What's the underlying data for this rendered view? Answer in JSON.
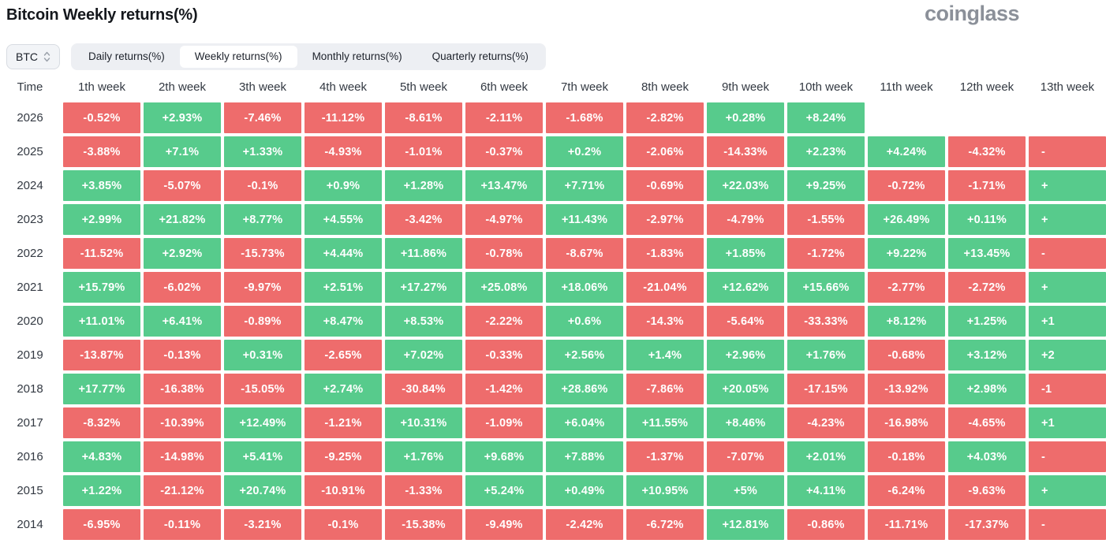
{
  "page": {
    "title": "Bitcoin Weekly returns(%)",
    "brand": "coinglass"
  },
  "controls": {
    "coin_select": {
      "label": "BTC",
      "icon": "sort-updown-icon"
    },
    "tabs": [
      {
        "label": "Daily returns(%)",
        "active": false
      },
      {
        "label": "Weekly returns(%)",
        "active": true
      },
      {
        "label": "Monthly returns(%)",
        "active": false
      },
      {
        "label": "Quarterly returns(%)",
        "active": false
      }
    ]
  },
  "chart_data": {
    "type": "heatmap",
    "title": "Bitcoin Weekly returns(%)",
    "legend_position": "none",
    "grid": false,
    "colors": {
      "positive": "#57cb8c",
      "negative": "#ee6c6c",
      "text": "#ffffff"
    },
    "columns": [
      "Time",
      "1th week",
      "2th week",
      "3th week",
      "4th week",
      "5th week",
      "6th week",
      "7th week",
      "8th week",
      "9th week",
      "10th week",
      "11th week",
      "12th week",
      "13th week"
    ],
    "clipped_columns": [
      "13th week"
    ],
    "rows": [
      {
        "year": "2026",
        "values": [
          "-0.52%",
          "+2.93%",
          "-7.46%",
          "-11.12%",
          "-8.61%",
          "-2.11%",
          "-1.68%",
          "-2.82%",
          "+0.28%",
          "+8.24%",
          "",
          "",
          ""
        ]
      },
      {
        "year": "2025",
        "values": [
          "-3.88%",
          "+7.1%",
          "+1.33%",
          "-4.93%",
          "-1.01%",
          "-0.37%",
          "+0.2%",
          "-2.06%",
          "-14.33%",
          "+2.23%",
          "+4.24%",
          "-4.32%",
          "-"
        ]
      },
      {
        "year": "2024",
        "values": [
          "+3.85%",
          "-5.07%",
          "-0.1%",
          "+0.9%",
          "+1.28%",
          "+13.47%",
          "+7.71%",
          "-0.69%",
          "+22.03%",
          "+9.25%",
          "-0.72%",
          "-1.71%",
          "+"
        ]
      },
      {
        "year": "2023",
        "values": [
          "+2.99%",
          "+21.82%",
          "+8.77%",
          "+4.55%",
          "-3.42%",
          "-4.97%",
          "+11.43%",
          "-2.97%",
          "-4.79%",
          "-1.55%",
          "+26.49%",
          "+0.11%",
          "+"
        ]
      },
      {
        "year": "2022",
        "values": [
          "-11.52%",
          "+2.92%",
          "-15.73%",
          "+4.44%",
          "+11.86%",
          "-0.78%",
          "-8.67%",
          "-1.83%",
          "+1.85%",
          "-1.72%",
          "+9.22%",
          "+13.45%",
          "-"
        ]
      },
      {
        "year": "2021",
        "values": [
          "+15.79%",
          "-6.02%",
          "-9.97%",
          "+2.51%",
          "+17.27%",
          "+25.08%",
          "+18.06%",
          "-21.04%",
          "+12.62%",
          "+15.66%",
          "-2.77%",
          "-2.72%",
          "+"
        ]
      },
      {
        "year": "2020",
        "values": [
          "+11.01%",
          "+6.41%",
          "-0.89%",
          "+8.47%",
          "+8.53%",
          "-2.22%",
          "+0.6%",
          "-14.3%",
          "-5.64%",
          "-33.33%",
          "+8.12%",
          "+1.25%",
          "+1"
        ]
      },
      {
        "year": "2019",
        "values": [
          "-13.87%",
          "-0.13%",
          "+0.31%",
          "-2.65%",
          "+7.02%",
          "-0.33%",
          "+2.56%",
          "+1.4%",
          "+2.96%",
          "+1.76%",
          "-0.68%",
          "+3.12%",
          "+2"
        ]
      },
      {
        "year": "2018",
        "values": [
          "+17.77%",
          "-16.38%",
          "-15.05%",
          "+2.74%",
          "-30.84%",
          "-1.42%",
          "+28.86%",
          "-7.86%",
          "+20.05%",
          "-17.15%",
          "-13.92%",
          "+2.98%",
          "-1"
        ]
      },
      {
        "year": "2017",
        "values": [
          "-8.32%",
          "-10.39%",
          "+12.49%",
          "-1.21%",
          "+10.31%",
          "-1.09%",
          "+6.04%",
          "+11.55%",
          "+8.46%",
          "-4.23%",
          "-16.98%",
          "-4.65%",
          "+1"
        ]
      },
      {
        "year": "2016",
        "values": [
          "+4.83%",
          "-14.98%",
          "+5.41%",
          "-9.25%",
          "+1.76%",
          "+9.68%",
          "+7.88%",
          "-1.37%",
          "-7.07%",
          "+2.01%",
          "-0.18%",
          "+4.03%",
          "-"
        ]
      },
      {
        "year": "2015",
        "values": [
          "+1.22%",
          "-21.12%",
          "+20.74%",
          "-10.91%",
          "-1.33%",
          "+5.24%",
          "+0.49%",
          "+10.95%",
          "+5%",
          "+4.11%",
          "-6.24%",
          "-9.63%",
          "+"
        ]
      },
      {
        "year": "2014",
        "values": [
          "-6.95%",
          "-0.11%",
          "-3.21%",
          "-0.1%",
          "-15.38%",
          "-9.49%",
          "-2.42%",
          "-6.72%",
          "+12.81%",
          "-0.86%",
          "-11.71%",
          "-17.37%",
          "-"
        ]
      }
    ]
  }
}
